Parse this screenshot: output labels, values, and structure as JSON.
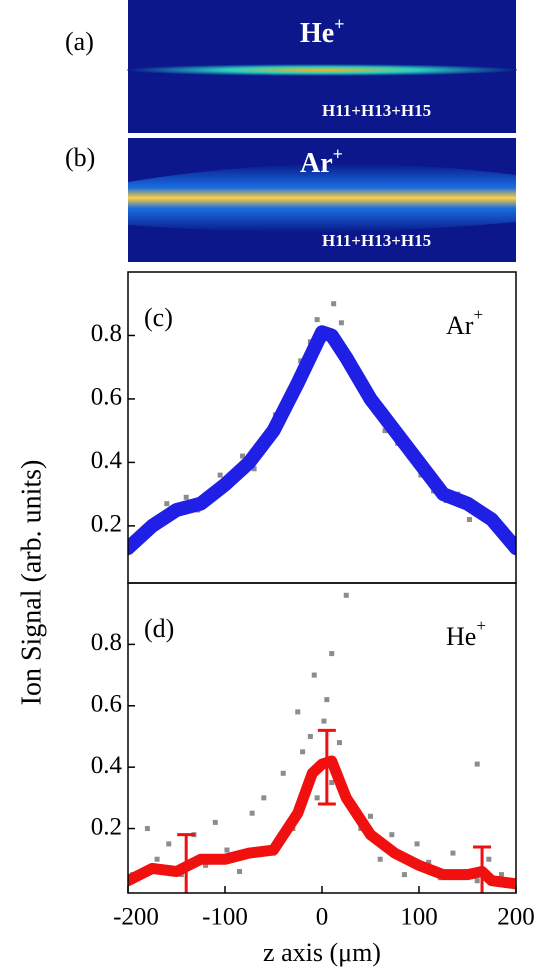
{
  "images": [
    {
      "label": "(a)",
      "ion": "He",
      "sup": "+",
      "harmonics": "H11+H13+H15"
    },
    {
      "label": "(b)",
      "ion": "Ar",
      "sup": "+",
      "harmonics": "H11+H13+H15"
    }
  ],
  "chart_data": [
    {
      "type": "line",
      "panel_label": "(c)",
      "ion": "Ar",
      "sup": "+",
      "ylabel": "Ion Signal (arb. units)",
      "xlim": [
        -200,
        200
      ],
      "ylim": [
        0.02,
        1.0
      ],
      "yticks": [
        0.2,
        0.4,
        0.6,
        0.8
      ],
      "series": [
        {
          "mode": "markers",
          "color": "#8c8c8c",
          "x": [
            -195,
            -185,
            -172,
            -160,
            -150,
            -140,
            -128,
            -115,
            -105,
            -95,
            -82,
            -70,
            -60,
            -48,
            -35,
            -22,
            -12,
            -5,
            5,
            12,
            20,
            30,
            42,
            55,
            65,
            78,
            90,
            102,
            115,
            128,
            140,
            152,
            165,
            178,
            190,
            198
          ],
          "values": [
            0.15,
            0.18,
            0.22,
            0.27,
            0.24,
            0.29,
            0.25,
            0.3,
            0.36,
            0.33,
            0.42,
            0.38,
            0.45,
            0.55,
            0.6,
            0.72,
            0.78,
            0.85,
            0.79,
            0.9,
            0.84,
            0.7,
            0.62,
            0.58,
            0.5,
            0.46,
            0.42,
            0.36,
            0.31,
            0.28,
            0.3,
            0.22,
            0.25,
            0.2,
            0.17,
            0.12
          ]
        },
        {
          "mode": "lines",
          "color": "#1f1fe6",
          "x": [
            -200,
            -175,
            -150,
            -125,
            -100,
            -75,
            -50,
            -25,
            0,
            10,
            25,
            50,
            75,
            100,
            125,
            150,
            175,
            200
          ],
          "values": [
            0.13,
            0.2,
            0.25,
            0.27,
            0.33,
            0.4,
            0.5,
            0.65,
            0.81,
            0.8,
            0.73,
            0.6,
            0.5,
            0.4,
            0.3,
            0.27,
            0.22,
            0.13
          ]
        }
      ]
    },
    {
      "type": "line",
      "panel_label": "(d)",
      "ion": "He",
      "sup": "+",
      "xlabel": "z axis (μm)",
      "xlim": [
        -200,
        200
      ],
      "xticks": [
        -200,
        -100,
        0,
        100,
        200
      ],
      "ylim": [
        -0.01,
        1.0
      ],
      "yticks": [
        0.2,
        0.4,
        0.6,
        0.8
      ],
      "series": [
        {
          "mode": "markers",
          "color": "#8c8c8c",
          "x": [
            -195,
            -180,
            -170,
            -158,
            -145,
            -132,
            -120,
            -110,
            -98,
            -85,
            -72,
            -60,
            -50,
            -40,
            -30,
            -20,
            -12,
            -5,
            2,
            10,
            18,
            25,
            32,
            40,
            50,
            60,
            72,
            85,
            98,
            110,
            122,
            135,
            148,
            160,
            172,
            185,
            195,
            -25,
            -8,
            10,
            25,
            5,
            160
          ],
          "values": [
            0.05,
            0.2,
            0.1,
            0.15,
            0.05,
            0.18,
            0.08,
            0.22,
            0.13,
            0.06,
            0.25,
            0.3,
            0.12,
            0.38,
            0.2,
            0.45,
            0.5,
            0.3,
            0.55,
            0.35,
            0.48,
            0.3,
            0.28,
            0.2,
            0.24,
            0.1,
            0.18,
            0.05,
            0.15,
            0.09,
            0.04,
            0.12,
            0.06,
            0.03,
            0.1,
            0.05,
            0.02,
            0.58,
            0.7,
            0.77,
            0.96,
            0.62,
            0.41
          ]
        },
        {
          "mode": "lines",
          "color": "#f01010",
          "x": [
            -200,
            -175,
            -150,
            -125,
            -100,
            -75,
            -50,
            -25,
            -10,
            0,
            10,
            25,
            50,
            75,
            100,
            125,
            150,
            165,
            175,
            200
          ],
          "values": [
            0.03,
            0.07,
            0.06,
            0.1,
            0.1,
            0.12,
            0.13,
            0.25,
            0.38,
            0.41,
            0.42,
            0.3,
            0.18,
            0.12,
            0.08,
            0.05,
            0.05,
            0.06,
            0.03,
            0.02
          ]
        },
        {
          "mode": "errorbars",
          "color": "#f01010",
          "x": [
            -140,
            5,
            165
          ],
          "values": [
            0.08,
            0.4,
            0.05
          ],
          "errors": [
            0.1,
            0.12,
            0.09
          ]
        }
      ]
    }
  ]
}
